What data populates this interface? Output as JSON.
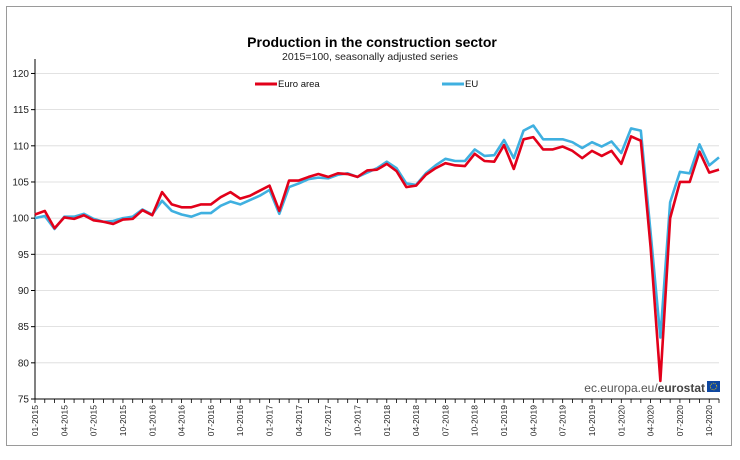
{
  "chart_data": {
    "type": "line",
    "title": "Production in the construction sector",
    "subtitle": "2015=100, seasonally adjusted series",
    "xlabel": "",
    "ylabel": "",
    "ylim": [
      75,
      122
    ],
    "yticks": [
      75,
      80,
      85,
      90,
      95,
      100,
      105,
      110,
      115,
      120
    ],
    "x_tick_labels": [
      "01-2015",
      "04-2015",
      "07-2015",
      "10-2015",
      "01-2016",
      "04-2016",
      "07-2016",
      "10-2016",
      "01-2017",
      "04-2017",
      "07-2017",
      "10-2017",
      "01-2018",
      "04-2018",
      "07-2018",
      "10-2018",
      "01-2019",
      "04-2019",
      "07-2019",
      "10-2019",
      "01-2020",
      "04-2020",
      "07-2020",
      "10-2020"
    ],
    "grid": "horizontal",
    "legend_position": "top",
    "series": [
      {
        "name": "Euro area",
        "color": "#e2001a",
        "values": [
          100.5,
          101.0,
          98.6,
          100.1,
          99.9,
          100.4,
          99.7,
          99.5,
          99.2,
          99.8,
          99.9,
          101.1,
          100.4,
          103.6,
          101.9,
          101.5,
          101.5,
          101.9,
          101.9,
          102.9,
          103.6,
          102.7,
          103.1,
          103.8,
          104.5,
          101.0,
          105.2,
          105.2,
          105.7,
          106.1,
          105.7,
          106.2,
          106.1,
          105.7,
          106.6,
          106.7,
          107.5,
          106.5,
          104.3,
          104.5,
          106.0,
          106.9,
          107.6,
          107.3,
          107.2,
          108.9,
          107.9,
          107.8,
          110.1,
          106.8,
          110.9,
          111.2,
          109.5,
          109.5,
          109.9,
          109.3,
          108.3,
          109.3,
          108.6,
          109.3,
          107.5,
          111.3,
          110.7,
          96.0,
          77.5,
          100.0,
          105.0,
          105.0,
          109.2,
          106.3,
          106.7
        ]
      },
      {
        "name": "EU",
        "color": "#3fb0e0",
        "values": [
          100.0,
          100.3,
          98.5,
          100.2,
          100.2,
          100.6,
          99.9,
          99.5,
          99.6,
          100.0,
          100.2,
          101.2,
          100.5,
          102.4,
          101.0,
          100.5,
          100.2,
          100.7,
          100.7,
          101.7,
          102.3,
          101.9,
          102.5,
          103.1,
          103.9,
          100.6,
          104.3,
          104.8,
          105.4,
          105.6,
          105.5,
          106.0,
          106.2,
          105.7,
          106.3,
          106.9,
          107.8,
          106.9,
          104.8,
          104.6,
          106.2,
          107.3,
          108.2,
          107.9,
          107.9,
          109.5,
          108.6,
          108.7,
          110.8,
          108.3,
          112.1,
          112.8,
          110.9,
          110.9,
          110.9,
          110.5,
          109.7,
          110.5,
          109.9,
          110.6,
          109.0,
          112.4,
          112.1,
          98.0,
          83.5,
          102.2,
          106.4,
          106.2,
          110.2,
          107.3,
          108.4
        ]
      }
    ]
  },
  "source": {
    "prefix": "ec.europa.eu/",
    "brand": "eurostat"
  },
  "logo_color": "#0e47a1"
}
